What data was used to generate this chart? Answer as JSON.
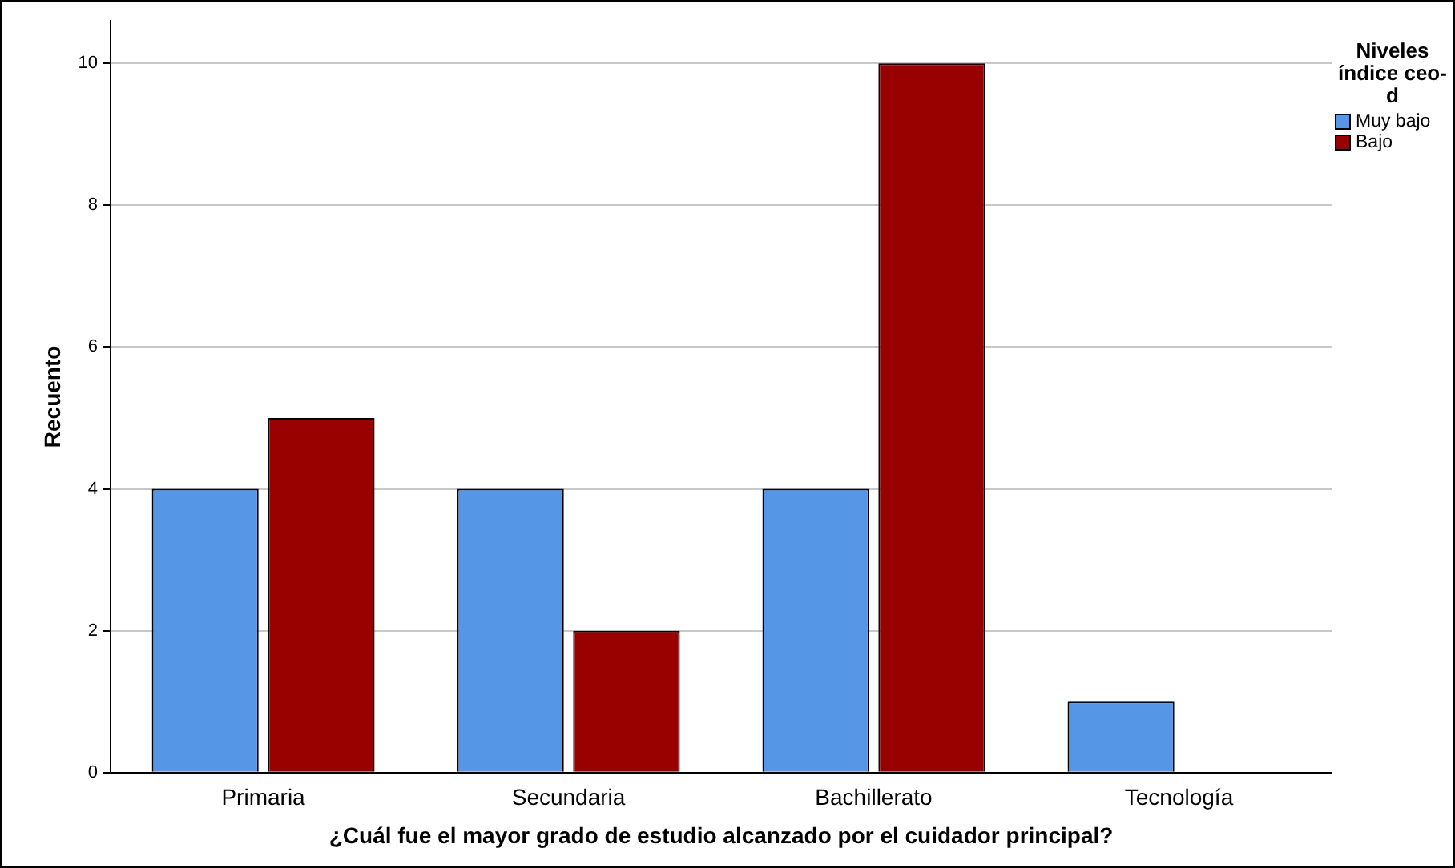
{
  "chart_data": {
    "type": "bar",
    "xlabel": "¿Cuál fue el mayor grado de estudio alcanzado por el cuidador principal?",
    "ylabel": "Recuento",
    "legend_title": "Niveles índice ceo-d",
    "categories": [
      "Primaria",
      "Secundaria",
      "Bachillerato",
      "Tecnología"
    ],
    "series": [
      {
        "name": "Muy bajo",
        "color": "#5596e6",
        "values": [
          4,
          4,
          4,
          1
        ]
      },
      {
        "name": "Bajo",
        "color": "#990000",
        "values": [
          5,
          2,
          10,
          0
        ]
      }
    ],
    "ylim": [
      0,
      10.6
    ],
    "yticks": [
      0,
      2,
      4,
      6,
      8,
      10
    ],
    "grid": "y",
    "legend": "top right"
  }
}
